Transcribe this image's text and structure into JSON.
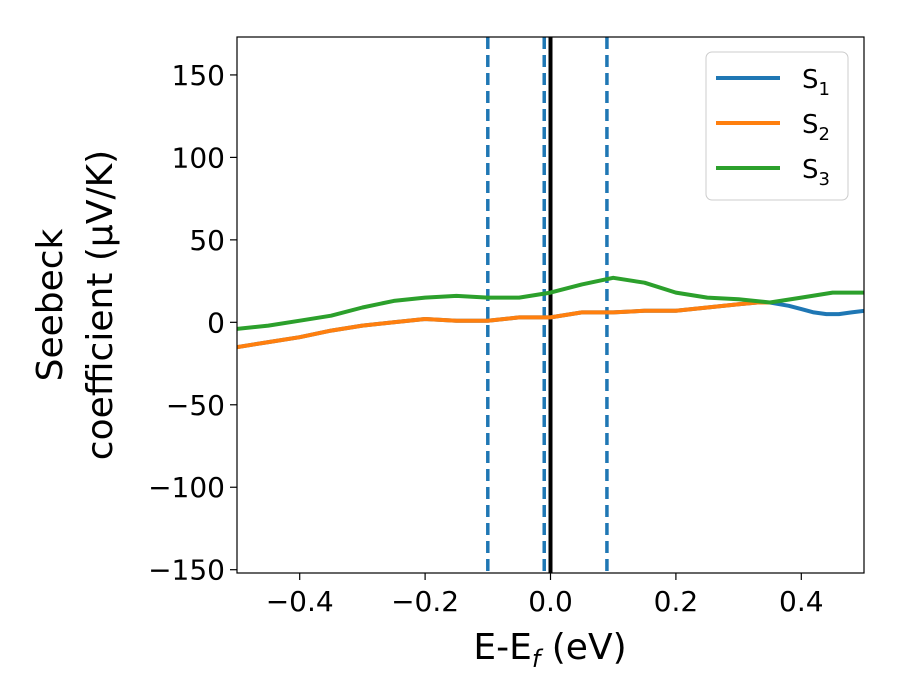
{
  "chart_data": {
    "type": "line",
    "xlabel": {
      "main": "E-E",
      "sub": "f",
      "rest": " (eV)"
    },
    "ylabel": {
      "line1": "Seebeck",
      "line2": "coefficient  (μV/K)"
    },
    "xlim": [
      -0.5,
      0.5
    ],
    "ylim": [
      -152,
      173
    ],
    "x_ticks": [
      -0.4,
      -0.2,
      0.0,
      0.2,
      0.4
    ],
    "x_tick_labels": [
      "−0.4",
      "−0.2",
      "0.0",
      "0.2",
      "0.4"
    ],
    "y_ticks": [
      -150,
      -100,
      -50,
      0,
      50,
      100,
      150
    ],
    "y_tick_labels": [
      "−150",
      "−100",
      "−50",
      "0",
      "50",
      "100",
      "150"
    ],
    "legend_position": "top-right",
    "vlines": [
      {
        "x": -0.1,
        "style": "dashed",
        "color": "#1f77b4"
      },
      {
        "x": -0.01,
        "style": "dashed",
        "color": "#1f77b4"
      },
      {
        "x": 0.0,
        "style": "solid",
        "color": "#000000"
      },
      {
        "x": 0.09,
        "style": "dashed",
        "color": "#1f77b4"
      }
    ],
    "series": [
      {
        "name": "S",
        "sub": "1",
        "color": "#1f77b4",
        "x": [
          -0.5,
          -0.45,
          -0.4,
          -0.35,
          -0.3,
          -0.25,
          -0.2,
          -0.15,
          -0.1,
          -0.05,
          0.0,
          0.05,
          0.1,
          0.15,
          0.2,
          0.25,
          0.3,
          0.33,
          0.35,
          0.38,
          0.4,
          0.42,
          0.44,
          0.46,
          0.48,
          0.5
        ],
        "y": [
          -15,
          -12,
          -9,
          -5,
          -2,
          0,
          2,
          1,
          1,
          3,
          3,
          6,
          6,
          7,
          7,
          9,
          11,
          12,
          12,
          10,
          8,
          6,
          5,
          5,
          6,
          7
        ]
      },
      {
        "name": "S",
        "sub": "2",
        "color": "#ff7f0e",
        "x": [
          -0.5,
          -0.45,
          -0.4,
          -0.35,
          -0.3,
          -0.25,
          -0.2,
          -0.15,
          -0.1,
          -0.05,
          0.0,
          0.05,
          0.1,
          0.15,
          0.2,
          0.25,
          0.3,
          0.33,
          0.35
        ],
        "y": [
          -15,
          -12,
          -9,
          -5,
          -2,
          0,
          2,
          1,
          1,
          3,
          3,
          6,
          6,
          7,
          7,
          9,
          11,
          12,
          12
        ]
      },
      {
        "name": "S",
        "sub": "3",
        "color": "#2ca02c",
        "x": [
          -0.5,
          -0.45,
          -0.4,
          -0.35,
          -0.3,
          -0.25,
          -0.2,
          -0.15,
          -0.1,
          -0.05,
          0.0,
          0.05,
          0.1,
          0.15,
          0.2,
          0.25,
          0.3,
          0.35,
          0.4,
          0.45,
          0.5
        ],
        "y": [
          -4,
          -2,
          1,
          4,
          9,
          13,
          15,
          16,
          15,
          15,
          18,
          23,
          27,
          24,
          18,
          15,
          14,
          12,
          15,
          18,
          18
        ]
      }
    ]
  }
}
